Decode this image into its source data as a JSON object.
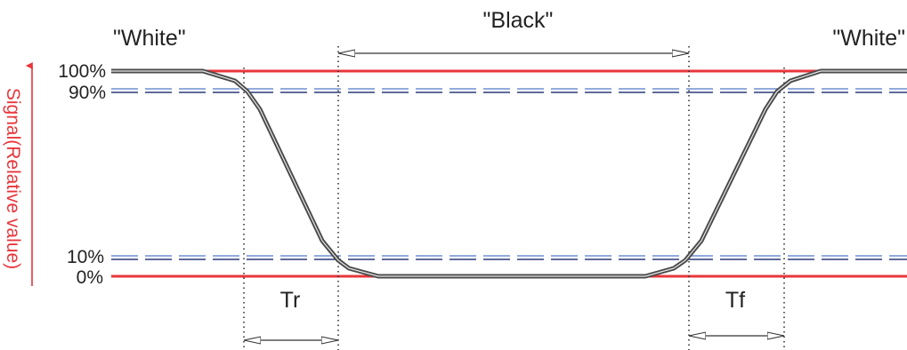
{
  "states": {
    "left": "\"White\"",
    "middle": "\"Black\"",
    "right": "\"White\""
  },
  "levels": {
    "l100": "100%",
    "l90": "90%",
    "l10": "10%",
    "l0": "0%"
  },
  "axis_label": "Signal(Relative value)",
  "intervals": {
    "rise": "Tr",
    "fall": "Tf"
  },
  "colors": {
    "reference_line": "#e8363b",
    "threshold_dark": "#2a3a78",
    "threshold_light": "#6f8fd0",
    "signal": "#555555",
    "axis_label": "#e8363b"
  }
}
